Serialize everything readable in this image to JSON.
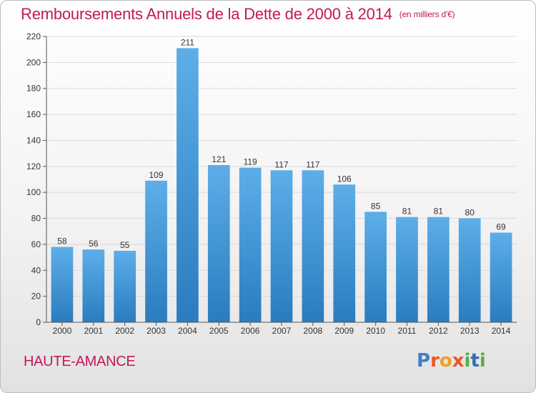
{
  "header": {
    "title": "Remboursements Annuels de la Dette de 2000 à 2014",
    "subtitle": "(en milliers d'€)"
  },
  "footer": {
    "city": "HAUTE-AMANCE",
    "logo": "Proxiti"
  },
  "colors": {
    "title": "#c2185b",
    "bar_top": "#5daee8",
    "bar_bottom": "#2a7cbf",
    "logo_letters": [
      "#3f7fc8",
      "#e8562a",
      "#f0a020",
      "#e8562a",
      "#5ab040",
      "#2e6fb8",
      "#5ab040"
    ]
  },
  "chart_data": {
    "type": "bar",
    "title": "Remboursements Annuels de la Dette de 2000 à 2014",
    "subtitle": "(en milliers d'€)",
    "categories": [
      "2000",
      "2001",
      "2002",
      "2003",
      "2004",
      "2005",
      "2006",
      "2007",
      "2008",
      "2009",
      "2010",
      "2011",
      "2012",
      "2013",
      "2014"
    ],
    "values": [
      58,
      56,
      55,
      109,
      211,
      121,
      119,
      117,
      117,
      106,
      85,
      81,
      81,
      80,
      69
    ],
    "ylim": [
      0,
      220
    ],
    "yticks": [
      0,
      20,
      40,
      60,
      80,
      100,
      120,
      140,
      160,
      180,
      200,
      220
    ],
    "grid": true
  }
}
